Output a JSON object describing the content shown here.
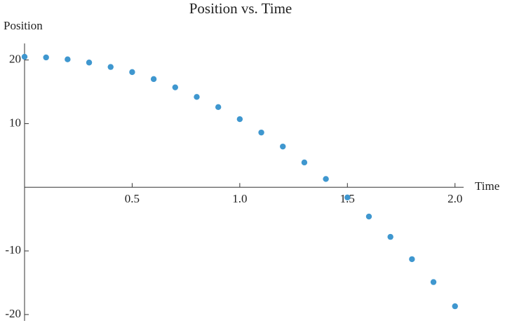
{
  "chart_data": {
    "type": "scatter",
    "title": "Position vs. Time",
    "x_label": "Time",
    "y_label": "Position",
    "x": [
      0,
      0.1,
      0.2,
      0.3,
      0.4,
      0.5,
      0.6,
      0.7,
      0.8,
      0.9,
      1.0,
      1.1,
      1.2,
      1.3,
      1.4,
      1.5,
      1.6,
      1.7,
      1.8,
      1.9,
      2.0
    ],
    "values": [
      20.5,
      20.4,
      20.1,
      19.6,
      18.9,
      18.1,
      17.0,
      15.7,
      14.2,
      12.6,
      10.7,
      8.6,
      6.4,
      3.9,
      1.3,
      -1.6,
      -4.6,
      -7.8,
      -11.3,
      -14.9,
      -18.7
    ],
    "color": "#3f97cf",
    "xlim": [
      0,
      2.04
    ],
    "ylim": [
      -21,
      22.6
    ],
    "xticks": [
      0.5,
      {
        "value": 1,
        "label": "1.0"
      },
      1.5,
      {
        "value": 2,
        "label": "2.0"
      }
    ],
    "yticks": [
      -20,
      -10,
      10,
      20
    ]
  }
}
